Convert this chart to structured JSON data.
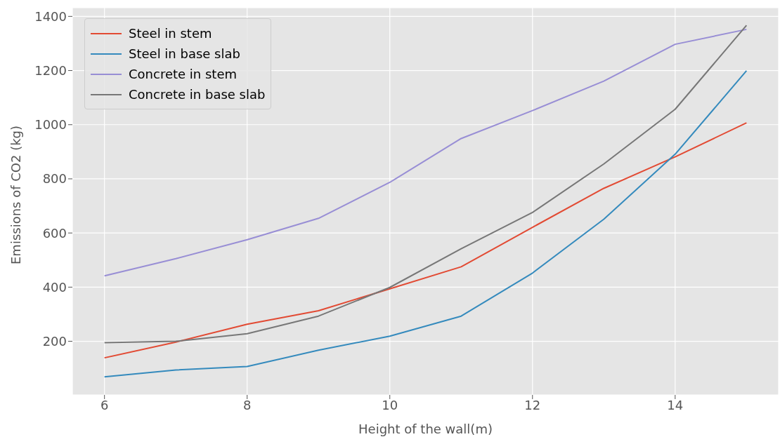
{
  "chart_data": {
    "type": "line",
    "xlabel": "Height of the wall(m)",
    "ylabel": "Emissions of CO2 (kg)",
    "x": [
      6,
      7,
      8,
      9,
      10,
      11,
      12,
      13,
      14,
      15
    ],
    "series": [
      {
        "name": "Steel in stem",
        "color": "#e24a33",
        "values": [
          139,
          197,
          263,
          313,
          394,
          475,
          621,
          765,
          881,
          1007
        ]
      },
      {
        "name": "Steel in base slab",
        "color": "#348abd",
        "values": [
          69,
          94,
          107,
          167,
          219,
          293,
          452,
          651,
          891,
          1199
        ]
      },
      {
        "name": "Concrete in stem",
        "color": "#988ed5",
        "values": [
          442,
          505,
          575,
          654,
          787,
          949,
          1052,
          1161,
          1297,
          1352
        ]
      },
      {
        "name": "Concrete in base slab",
        "color": "#777777",
        "values": [
          195,
          200,
          228,
          293,
          399,
          542,
          676,
          855,
          1057,
          1367
        ]
      }
    ],
    "xlim": [
      5.55,
      15.45
    ],
    "xticks": [
      6,
      8,
      10,
      12,
      14
    ],
    "ylim": [
      2,
      1432
    ],
    "yticks": [
      200,
      400,
      600,
      800,
      1000,
      1200,
      1400
    ],
    "grid": true,
    "legend": "top left",
    "marker": "none",
    "line_style": "solid"
  }
}
